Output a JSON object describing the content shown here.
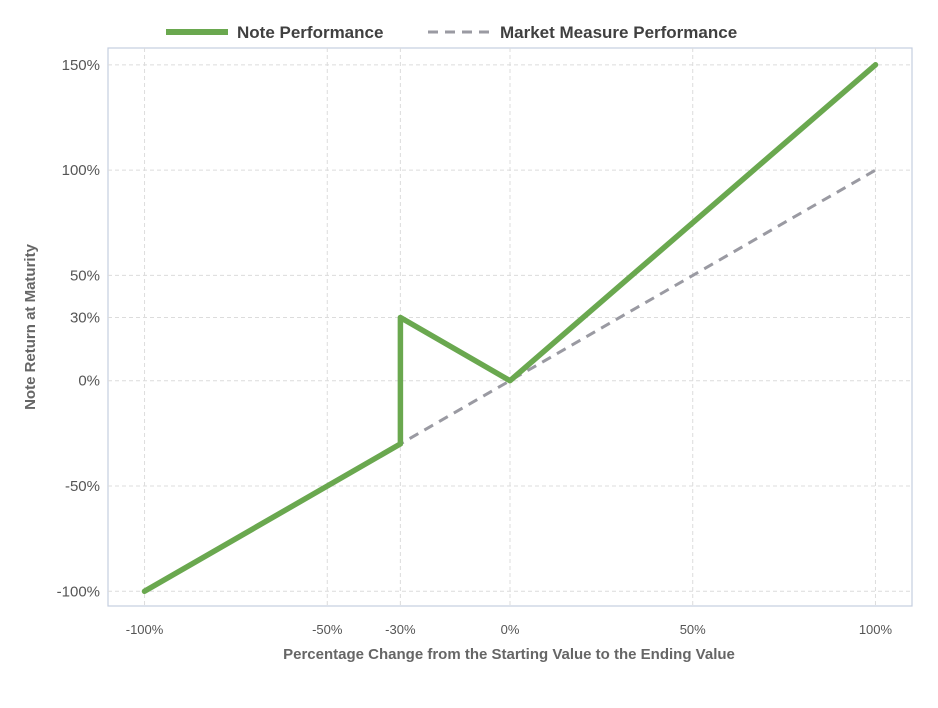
{
  "chart_data": {
    "type": "line",
    "xlabel": "Percentage Change from the Starting Value to the Ending Value",
    "ylabel": "Note Return at Maturity",
    "xlim": [
      -110,
      110
    ],
    "ylim": [
      -107,
      158
    ],
    "x_ticks": [
      -100,
      -50,
      -30,
      0,
      50,
      100
    ],
    "x_tick_labels": [
      "-100%",
      "-50%",
      "-30%",
      "0%",
      "50%",
      "100%"
    ],
    "y_ticks": [
      150,
      100,
      50,
      30,
      0,
      -50,
      -100
    ],
    "y_tick_labels": [
      "150%",
      "100%",
      "50%",
      "30%",
      "0%",
      "-50%",
      "-100%"
    ],
    "grid": true,
    "legend_position": "top",
    "series": [
      {
        "name": "Note Performance",
        "style": "solid",
        "color": "#6aa84f",
        "points": [
          [
            -100,
            -100
          ],
          [
            -30,
            -30
          ],
          [
            -30,
            30
          ],
          [
            0,
            0
          ],
          [
            100,
            150
          ]
        ]
      },
      {
        "name": "Market Measure Performance",
        "style": "dashed",
        "color": "#9a9aa2",
        "points": [
          [
            -100,
            -100
          ],
          [
            100,
            100
          ]
        ]
      }
    ]
  }
}
